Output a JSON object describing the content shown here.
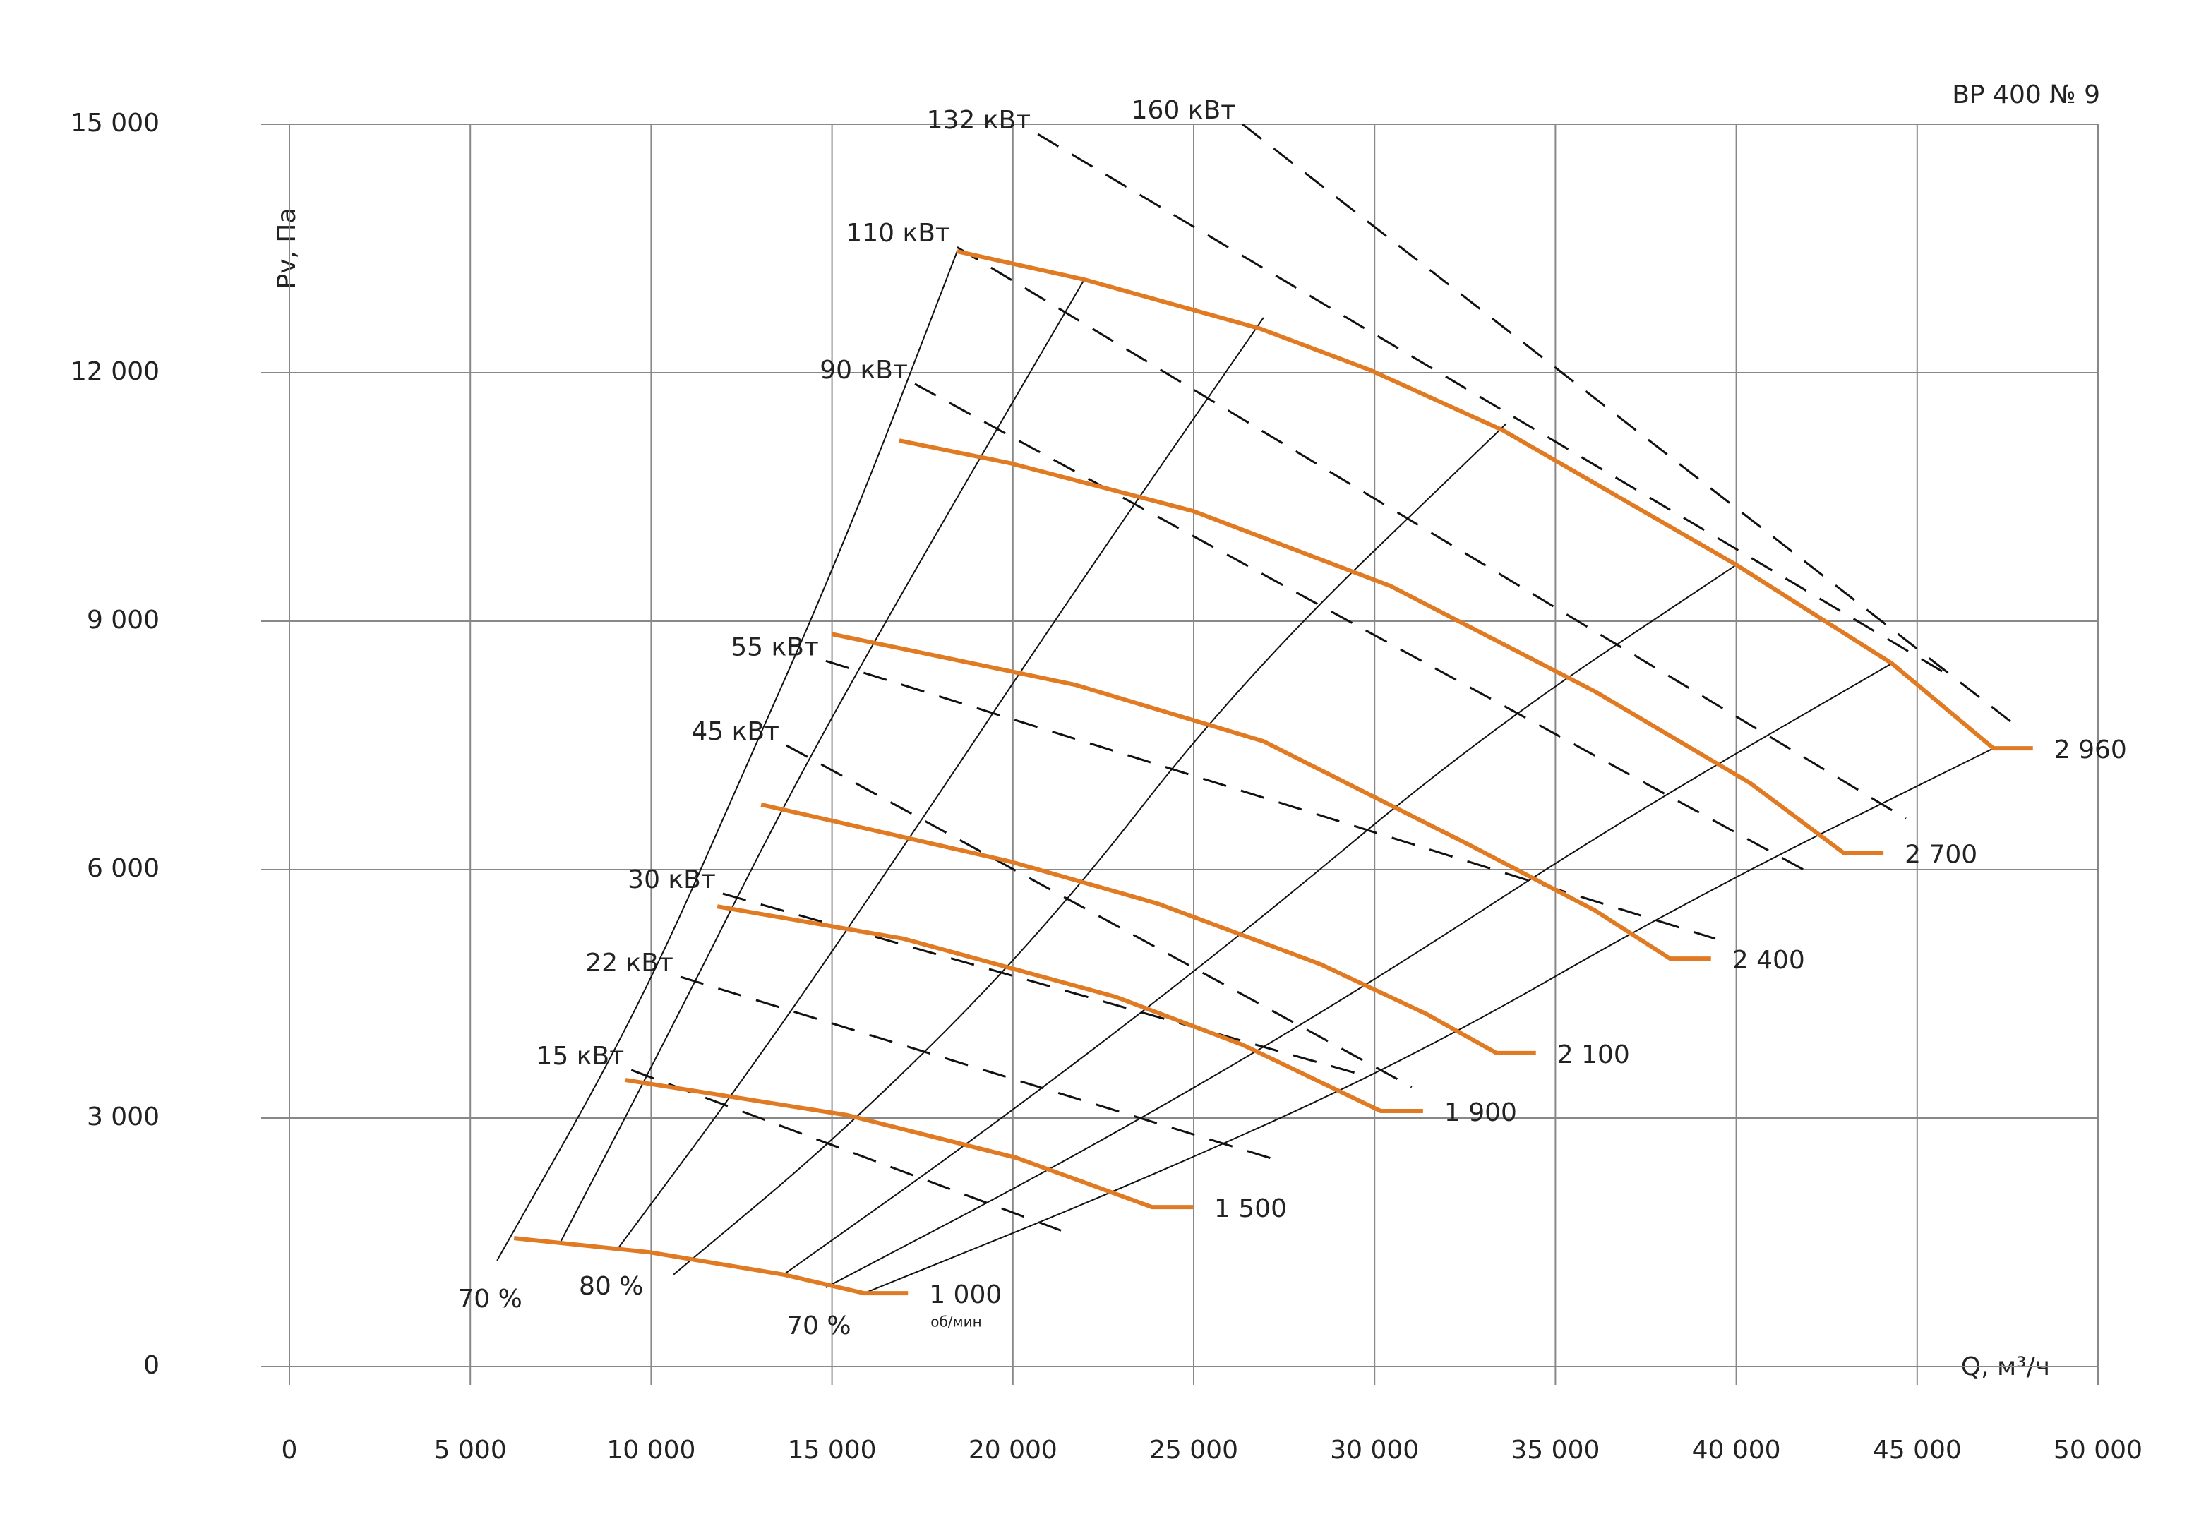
{
  "chart_data": {
    "type": "line",
    "title": "ВР 400 № 9",
    "y_label": "Pv, Па",
    "x_label": "Q, м³/ч",
    "unit_label": "об/мин",
    "xlim": [
      0,
      50000
    ],
    "ylim": [
      0,
      15000
    ],
    "grid": true,
    "xticks": [
      0,
      {
        "value": 5000,
        "label": "5 000"
      },
      {
        "value": 10000,
        "label": "10 000"
      },
      {
        "value": 15000,
        "label": "15 000"
      },
      {
        "value": 20000,
        "label": "20 000"
      },
      {
        "value": 25000,
        "label": "25 000"
      },
      {
        "value": 30000,
        "label": "30 000"
      },
      {
        "value": 35000,
        "label": "35 000"
      },
      {
        "value": 40000,
        "label": "40 000"
      },
      {
        "value": 45000,
        "label": "45 000"
      },
      {
        "value": 50000,
        "label": "50 000"
      }
    ],
    "yticks": [
      0,
      {
        "value": 3000,
        "label": "3 000"
      },
      {
        "value": 6000,
        "label": "6 000"
      },
      {
        "value": 9000,
        "label": "9 000"
      },
      {
        "value": 12000,
        "label": "12 000"
      },
      {
        "value": 15000,
        "label": "15 000"
      }
    ],
    "series": [
      {
        "name": "1 000",
        "color": "#e07b24",
        "x": [
          6210,
          9950,
          13660,
          15890,
          17100
        ],
        "values": [
          1550,
          1380,
          1110,
          885,
          885
        ]
      },
      {
        "name": "1 500",
        "color": "#e07b24",
        "x": [
          9290,
          15420,
          20100,
          23850,
          24980
        ],
        "values": [
          3460,
          3035,
          2520,
          1925,
          1925
        ]
      },
      {
        "name": "1 900",
        "color": "#e07b24",
        "x": [
          11830,
          16980,
          22830,
          26350,
          30170,
          31340
        ],
        "values": [
          5555,
          5165,
          4465,
          3885,
          3085,
          3085
        ]
      },
      {
        "name": "2 100",
        "color": "#e07b24",
        "x": [
          13040,
          19900,
          24000,
          28490,
          31420,
          33370,
          34460
        ],
        "values": [
          6785,
          6100,
          5590,
          4860,
          4260,
          3785,
          3785
        ]
      },
      {
        "name": "2 400",
        "color": "#e07b24",
        "x": [
          14990,
          21740,
          26930,
          32590,
          36100,
          38170,
          39300
        ],
        "values": [
          8845,
          8230,
          7550,
          6305,
          5505,
          4925,
          4925
        ]
      },
      {
        "name": "2 700",
        "color": "#e07b24",
        "x": [
          16860,
          19900,
          24980,
          30440,
          36100,
          40400,
          42970,
          44070
        ],
        "values": [
          11180,
          10910,
          10330,
          9425,
          8150,
          7040,
          6200,
          6200
        ]
      },
      {
        "name": "2 960",
        "color": "#e07b24",
        "x": [
          18460,
          21975,
          26850,
          29860,
          33570,
          40000,
          44300,
          47110,
          48200
        ],
        "values": [
          13465,
          13125,
          12530,
          12035,
          11300,
          9680,
          8490,
          7465,
          7465
        ]
      }
    ],
    "efficiency_curves": [
      {
        "name": "70 %",
        "x": [
          5740,
          9560,
          12690,
          15420,
          18460
        ],
        "values": [
          1280,
          4225,
          7295,
          10020,
          13465
        ]
      },
      {
        "x": [
          7490,
          10730,
          13860,
          17370,
          21975
        ],
        "values": [
          1500,
          4225,
          6955,
          9680,
          13125
        ]
      },
      {
        "name": "80 %",
        "x": [
          9090,
          12690,
          16980,
          21660,
          26930
        ],
        "values": [
          1430,
          3545,
          6270,
          9340,
          12665
        ]
      },
      {
        "x": [
          10620,
          15420,
          20880,
          26350,
          33640
        ],
        "values": [
          1110,
          2865,
          5250,
          8320,
          11385
        ]
      },
      {
        "x": [
          13660,
          19320,
          25960,
          32980,
          40000
        ],
        "values": [
          1110,
          2865,
          5080,
          7635,
          9680
        ]
      },
      {
        "name": "70 %",
        "x": [
          14830,
          21660,
          29080,
          36880,
          44300
        ],
        "values": [
          955,
          2520,
          4400,
          6615,
          8490
        ]
      },
      {
        "x": [
          15890,
          23220,
          31030,
          38840,
          47110
        ],
        "values": [
          885,
          2180,
          3715,
          5675,
          7465
        ]
      }
    ],
    "power_lines": [
      {
        "name": "15 кВт",
        "x": [
          9450,
          21680
        ],
        "values": [
          3580,
          1585
        ]
      },
      {
        "name": "22 кВт",
        "x": [
          10810,
          27320
        ],
        "values": [
          4705,
          2490
        ]
      },
      {
        "name": "30 кВт",
        "x": [
          11980,
          29470
        ],
        "values": [
          5710,
          3545
        ]
      },
      {
        "name": "45 кВт",
        "x": [
          13740,
          31030
        ],
        "values": [
          7500,
          3375
        ]
      },
      {
        "name": "55 кВт",
        "x": [
          14830,
          39420
        ],
        "values": [
          8520,
          5165
        ]
      },
      {
        "name": "90 кВт",
        "x": [
          17290,
          42150
        ],
        "values": [
          11865,
          5930
        ]
      },
      {
        "name": "110 кВт",
        "x": [
          18460,
          44690
        ],
        "values": [
          13515,
          6615
        ]
      },
      {
        "name": "132 кВт",
        "x": [
          20690,
          45860
        ],
        "values": [
          14880,
          8350
        ]
      },
      {
        "name": "160 кВт",
        "x": [
          26350,
          47890
        ],
        "values": [
          15000,
          7685
        ]
      }
    ]
  }
}
